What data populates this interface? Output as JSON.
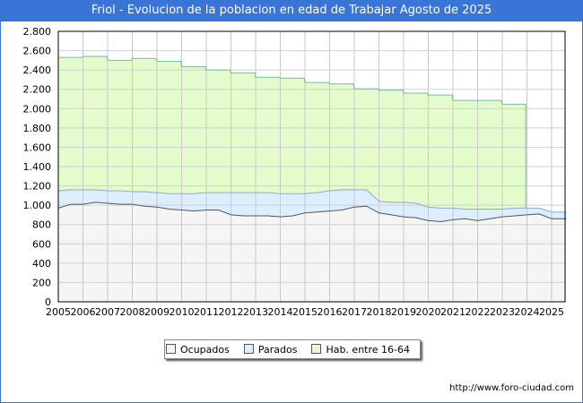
{
  "title": "Friol - Evolucion de la poblacion en edad de Trabajar Agosto de 2025",
  "footer_url": "http://www.foro-ciudad.com",
  "colors": {
    "title_bg": "#3a75d6",
    "ocupados_fill": "#f5f5f5",
    "ocupados_line": "#555555",
    "parados_fill": "#ddeeff",
    "parados_line": "#88aadd",
    "hab_fill": "#e4fccc",
    "hab_line": "#77bb99"
  },
  "chart_data": {
    "type": "area",
    "title": "Friol - Evolucion de la poblacion en edad de Trabajar Agosto de 2025",
    "xlabel": "",
    "ylabel": "",
    "ylim": [
      0,
      2800
    ],
    "xlim": [
      2005,
      2025.6
    ],
    "yticks": [
      0,
      200,
      400,
      600,
      800,
      1000,
      1200,
      1400,
      1600,
      1800,
      2000,
      2200,
      2400,
      2600,
      2800
    ],
    "ytick_labels": [
      "0",
      "200",
      "400",
      "600",
      "800",
      "1.000",
      "1.200",
      "1.400",
      "1.600",
      "1.800",
      "2.000",
      "2.200",
      "2.400",
      "2.600",
      "2.800"
    ],
    "xtick_labels": [
      "2005",
      "2006",
      "2007",
      "2008",
      "2009",
      "2010",
      "2011",
      "2012",
      "2013",
      "2014",
      "2015",
      "2016",
      "2017",
      "2018",
      "2019",
      "2020",
      "2021",
      "2022",
      "2023",
      "2024",
      "2025"
    ],
    "grid": true,
    "legend_position": "bottom-center",
    "series": [
      {
        "name": "Ocupados",
        "x": [
          2005,
          2005.5,
          2006,
          2006.5,
          2007,
          2007.5,
          2008,
          2008.5,
          2009,
          2009.5,
          2010,
          2010.5,
          2011,
          2011.5,
          2012,
          2012.5,
          2013,
          2013.5,
          2014,
          2014.5,
          2015,
          2015.5,
          2016,
          2016.5,
          2017,
          2017.5,
          2018,
          2018.5,
          2019,
          2019.5,
          2020,
          2020.5,
          2021,
          2021.5,
          2022,
          2022.5,
          2023,
          2023.5,
          2024,
          2024.5,
          2025,
          2025.6
        ],
        "values": [
          970,
          1010,
          1010,
          1030,
          1020,
          1010,
          1010,
          990,
          980,
          960,
          950,
          940,
          950,
          950,
          900,
          890,
          890,
          890,
          880,
          890,
          920,
          930,
          940,
          950,
          980,
          990,
          920,
          900,
          880,
          870,
          840,
          830,
          850,
          860,
          840,
          860,
          880,
          890,
          900,
          910,
          860,
          860
        ]
      },
      {
        "name": "Parados",
        "x": [
          2005,
          2005.5,
          2006,
          2006.5,
          2007,
          2007.5,
          2008,
          2008.5,
          2009,
          2009.5,
          2010,
          2010.5,
          2011,
          2011.5,
          2012,
          2012.5,
          2013,
          2013.5,
          2014,
          2014.5,
          2015,
          2015.5,
          2016,
          2016.5,
          2017,
          2017.5,
          2018,
          2018.5,
          2019,
          2019.5,
          2020,
          2020.5,
          2021,
          2021.5,
          2022,
          2022.5,
          2023,
          2023.5,
          2024,
          2024.5,
          2025,
          2025.6
        ],
        "values": [
          180,
          150,
          150,
          130,
          130,
          140,
          130,
          150,
          150,
          160,
          170,
          180,
          180,
          180,
          230,
          240,
          240,
          240,
          240,
          230,
          200,
          200,
          210,
          210,
          180,
          170,
          120,
          130,
          150,
          150,
          140,
          140,
          120,
          100,
          120,
          100,
          80,
          80,
          70,
          60,
          70,
          70
        ]
      },
      {
        "name": "Hab. entre 16-64",
        "x": [
          2005,
          2006,
          2007,
          2008,
          2009,
          2010,
          2011,
          2012,
          2013,
          2014,
          2015,
          2016,
          2017,
          2018,
          2019,
          2020,
          2021,
          2022,
          2023,
          2023.95
        ],
        "values": [
          2530,
          2540,
          2500,
          2520,
          2490,
          2435,
          2400,
          2370,
          2325,
          2315,
          2270,
          2255,
          2205,
          2190,
          2160,
          2140,
          2085,
          2085,
          2045,
          2045
        ]
      }
    ]
  }
}
